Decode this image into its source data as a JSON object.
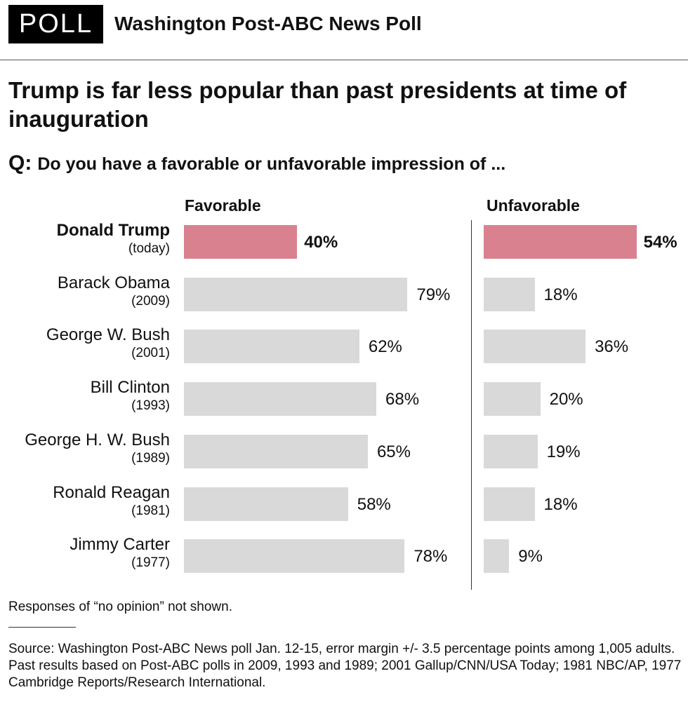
{
  "header": {
    "badge": "POLL",
    "brand": "Washington Post-ABC News Poll"
  },
  "title": "Trump is far less popular than past presidents at time of inauguration",
  "question": {
    "prefix": "Q:",
    "text": "Do you have a favorable or unfavorable impression of ..."
  },
  "chart_data": {
    "type": "bar",
    "orientation": "horizontal",
    "categories": [
      {
        "name": "Donald Trump",
        "year": "(today)"
      },
      {
        "name": "Barack Obama",
        "year": "(2009)"
      },
      {
        "name": "George W. Bush",
        "year": "(2001)"
      },
      {
        "name": "Bill Clinton",
        "year": "(1993)"
      },
      {
        "name": "George H. W. Bush",
        "year": "(1989)"
      },
      {
        "name": "Ronald Reagan",
        "year": "(1981)"
      },
      {
        "name": "Jimmy Carter",
        "year": "(1977)"
      }
    ],
    "series": [
      {
        "name": "Favorable",
        "values": [
          40,
          79,
          62,
          68,
          65,
          58,
          78
        ]
      },
      {
        "name": "Unfavorable",
        "values": [
          54,
          18,
          36,
          20,
          19,
          18,
          9
        ]
      }
    ],
    "unit": "%",
    "xlim": [
      0,
      100
    ],
    "highlight_index": 0,
    "colors": {
      "highlight": "#d9818e",
      "default": "#d9d9d9"
    }
  },
  "footnote": "Responses of “no opinion” not shown.",
  "source": "Source: Washington Post-ABC News poll Jan. 12-15, error margin +/- 3.5 percentage points among 1,005 adults. Past results based on Post-ABC polls in 2009, 1993 and 1989; 2001 Gallup/CNN/USA Today; 1981 NBC/AP, 1977 Cambridge Reports/Research International."
}
